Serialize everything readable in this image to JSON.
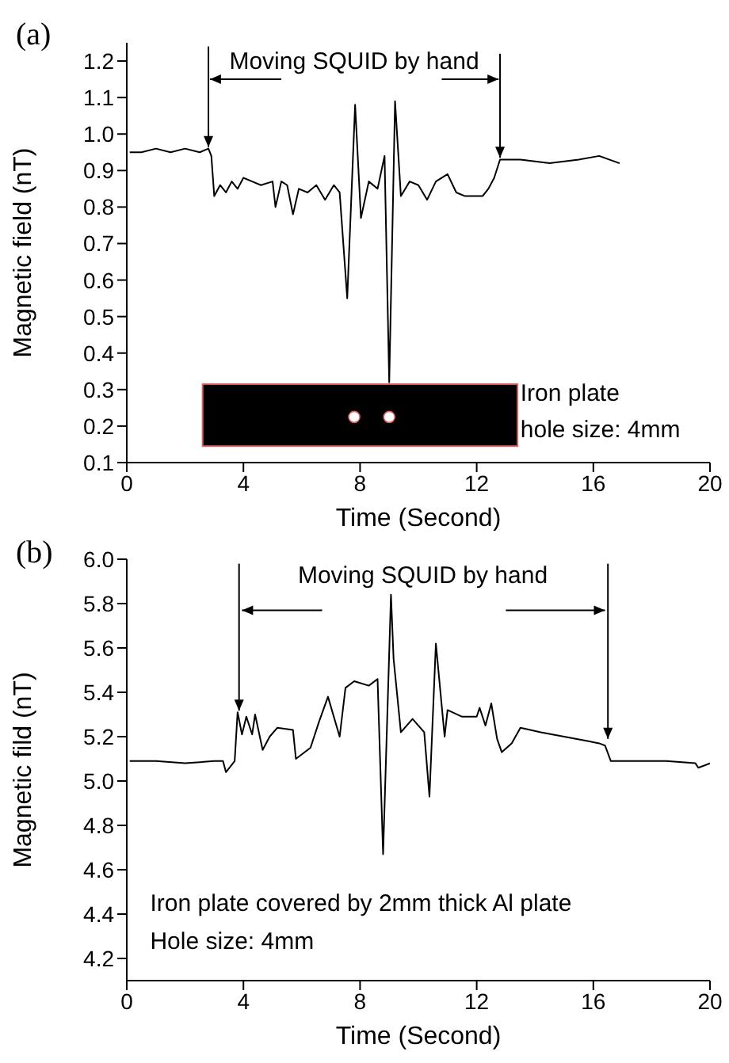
{
  "chart_data": [
    {
      "type": "line",
      "title": "(a)",
      "xlabel": "Time (Second)",
      "ylabel": "Magnetic field (nT)",
      "annotations": [
        {
          "text": "Moving SQUID by hand",
          "x": 2.8,
          "y": 0.96
        },
        "Iron plate",
        "hole size: 4mm"
      ],
      "x": [
        0.1,
        0.5,
        1.0,
        1.5,
        2.0,
        2.5,
        2.8,
        2.9,
        3.0,
        3.2,
        3.4,
        3.6,
        3.8,
        4.0,
        4.3,
        4.6,
        5.0,
        5.1,
        5.3,
        5.5,
        5.7,
        5.9,
        6.2,
        6.5,
        6.8,
        7.1,
        7.3,
        7.56,
        7.83,
        8.03,
        8.3,
        8.6,
        8.84,
        9.0,
        9.2,
        9.4,
        9.7,
        10.0,
        10.3,
        10.6,
        11.0,
        11.3,
        11.6,
        12.2,
        12.4,
        12.6,
        12.8,
        13.5,
        14.5,
        15.5,
        16.2,
        16.9
      ],
      "series": [
        {
          "color": "#000000",
          "values": [
            0.95,
            0.95,
            0.96,
            0.95,
            0.96,
            0.95,
            0.96,
            0.94,
            0.83,
            0.86,
            0.84,
            0.87,
            0.85,
            0.88,
            0.87,
            0.86,
            0.87,
            0.8,
            0.87,
            0.86,
            0.78,
            0.85,
            0.84,
            0.86,
            0.82,
            0.86,
            0.84,
            0.55,
            1.08,
            0.77,
            0.87,
            0.85,
            0.94,
            0.32,
            1.09,
            0.83,
            0.87,
            0.86,
            0.82,
            0.87,
            0.89,
            0.84,
            0.83,
            0.83,
            0.85,
            0.88,
            0.93,
            0.93,
            0.92,
            0.93,
            0.94,
            0.92
          ]
        }
      ],
      "xlim": [
        0,
        20
      ],
      "xticks": [
        0,
        4,
        8,
        12,
        16,
        20
      ],
      "ylim": [
        0.1,
        1.25
      ],
      "yticks": [
        0.1,
        0.2,
        0.3,
        0.4,
        0.5,
        0.6,
        0.7,
        0.8,
        0.9,
        {
          "value": 1,
          "label": "1.0"
        },
        1.1,
        1.2
      ]
    },
    {
      "type": "line",
      "title": "(b)",
      "xlabel": "Time (Second)",
      "ylabel": "Magnetic fild (nT)",
      "annotations": [
        "Moving SQUID by hand",
        "Iron plate covered by 2mm thick Al plate",
        "Hole size: 4mm"
      ],
      "x": [
        0.1,
        1,
        2,
        3,
        3.3,
        3.4,
        3.7,
        3.8,
        3.95,
        4.1,
        4.3,
        4.4,
        4.66,
        4.9,
        5.16,
        5.7,
        5.8,
        6.3,
        6.6,
        6.9,
        7.3,
        7.5,
        7.8,
        8.3,
        8.6,
        8.79,
        9.06,
        9.15,
        9.4,
        9.8,
        10.2,
        10.38,
        10.6,
        10.9,
        11.0,
        11.5,
        12.0,
        12.1,
        12.3,
        12.5,
        12.7,
        12.86,
        13.2,
        13.5,
        14.2,
        15.0,
        15.8,
        16.2,
        16.4,
        16.6,
        17.5,
        18.5,
        19.5,
        19.6,
        20
      ],
      "series": [
        {
          "color": "#000000",
          "values": [
            5.09,
            5.09,
            5.08,
            5.09,
            5.09,
            5.04,
            5.09,
            5.31,
            5.21,
            5.29,
            5.21,
            5.3,
            5.14,
            5.2,
            5.24,
            5.23,
            5.1,
            5.15,
            5.27,
            5.38,
            5.2,
            5.42,
            5.45,
            5.43,
            5.46,
            4.67,
            5.84,
            5.55,
            5.22,
            5.28,
            5.22,
            4.93,
            5.62,
            5.2,
            5.32,
            5.29,
            5.29,
            5.33,
            5.25,
            5.35,
            5.19,
            5.13,
            5.17,
            5.24,
            5.22,
            5.2,
            5.18,
            5.17,
            5.16,
            5.09,
            5.09,
            5.09,
            5.08,
            5.06,
            5.08
          ]
        }
      ],
      "xlim": [
        0,
        20
      ],
      "xticks": [
        0,
        4,
        8,
        12,
        16,
        20
      ],
      "ylim": [
        4.1,
        6.0
      ],
      "yticks": [
        4.2,
        4.4,
        4.6,
        4.8,
        {
          "value": 5,
          "label": "5.0"
        },
        5.2,
        5.4,
        5.6,
        5.8,
        {
          "value": 6,
          "label": "6.0"
        }
      ]
    }
  ]
}
